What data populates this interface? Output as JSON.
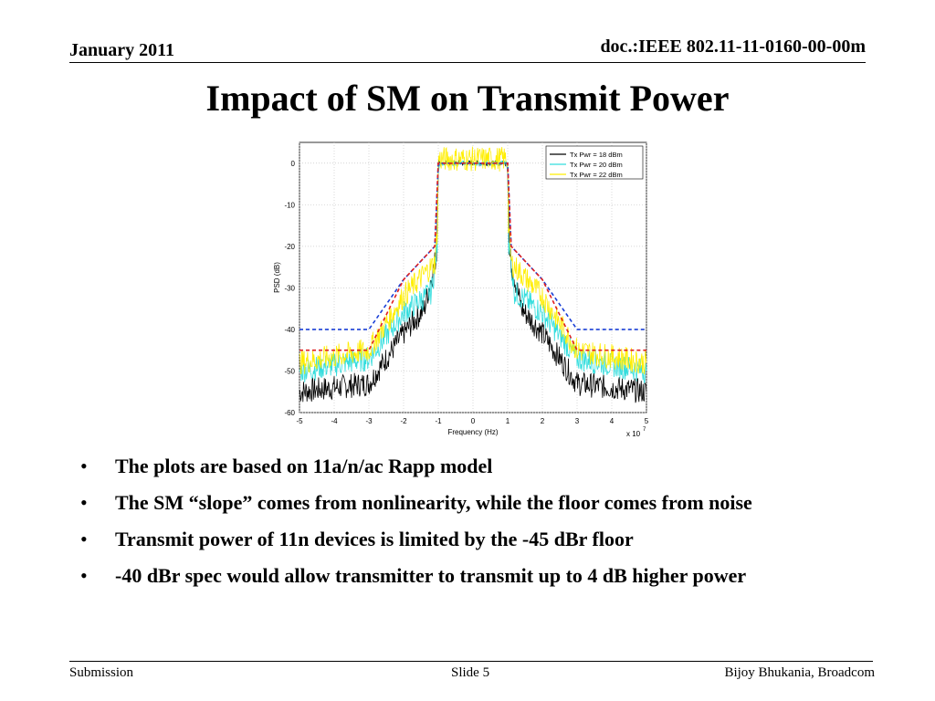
{
  "header": {
    "date": "January 2011",
    "doc_id": "doc.:IEEE 802.11-11-0160-00-00m"
  },
  "title": "Impact of SM on Transmit Power",
  "chart_data": {
    "type": "line",
    "xlabel": "Frequency (Hz)",
    "ylabel": "PSD (dB)",
    "x_exponent_label": "x 10",
    "x_exponent": "7",
    "xlim": [
      -5,
      5
    ],
    "ylim": [
      -60,
      5
    ],
    "xticks": [
      -5,
      -4,
      -3,
      -2,
      -1,
      0,
      1,
      2,
      3,
      4,
      5
    ],
    "yticks": [
      0,
      -10,
      -20,
      -30,
      -40,
      -50,
      -60
    ],
    "grid": true,
    "legend_position": "top-right",
    "series": [
      {
        "name": "Tx Pwr = 18 dBm",
        "color": "#000000",
        "x": [
          -5,
          -3,
          -2,
          -1.4,
          -1.05,
          -1,
          -0.5,
          0,
          0.5,
          1,
          1.05,
          1.4,
          2,
          3,
          5
        ],
        "y": [
          -55,
          -53,
          -41,
          -35,
          -22,
          0,
          0,
          0,
          0,
          0,
          -22,
          -35,
          -41,
          -53,
          -55
        ]
      },
      {
        "name": "Tx Pwr = 20 dBm",
        "color": "#33dddd",
        "x": [
          -5,
          -3,
          -2,
          -1.2,
          -1.03,
          -1,
          -0.5,
          0,
          0.5,
          1,
          1.03,
          1.2,
          2,
          3,
          5
        ],
        "y": [
          -50,
          -47,
          -36,
          -31,
          -20,
          0,
          0,
          0,
          0,
          0,
          -20,
          -31,
          -36,
          -47,
          -50
        ]
      },
      {
        "name": "Tx Pwr = 22 dBm",
        "color": "#ffee00",
        "x": [
          -5,
          -3,
          -2,
          -1.1,
          -1.02,
          -1,
          -0.5,
          0,
          0.5,
          1,
          1.02,
          1.1,
          2,
          3,
          5
        ],
        "y": [
          -48,
          -45,
          -32,
          -24,
          -15,
          1,
          1,
          1,
          1,
          1,
          -15,
          -24,
          -32,
          -45,
          -48
        ]
      }
    ],
    "masks": [
      {
        "color": "#1a3fd6",
        "x": [
          -5,
          -3,
          -2,
          -1.1,
          -1,
          1,
          1.1,
          2,
          3,
          5
        ],
        "y": [
          -40,
          -40,
          -28,
          -20,
          0,
          0,
          -20,
          -28,
          -40,
          -40
        ]
      },
      {
        "color": "#e02020",
        "x": [
          -5,
          -3,
          -2,
          -1.1,
          -1,
          1,
          1.1,
          2,
          3,
          5
        ],
        "y": [
          -45,
          -45,
          -28,
          -20,
          0,
          0,
          -20,
          -28,
          -45,
          -45
        ]
      }
    ]
  },
  "bullets": [
    "The plots are based on 11a/n/ac Rapp model",
    "The SM “slope” comes from nonlinearity, while the floor comes from noise",
    "Transmit power of 11n devices is limited by the -45 dBr floor",
    "-40 dBr spec would allow transmitter to transmit up to 4 dB higher power"
  ],
  "footer": {
    "left": "Submission",
    "center": "Slide 5",
    "right": "Bijoy Bhukania, Broadcom"
  }
}
